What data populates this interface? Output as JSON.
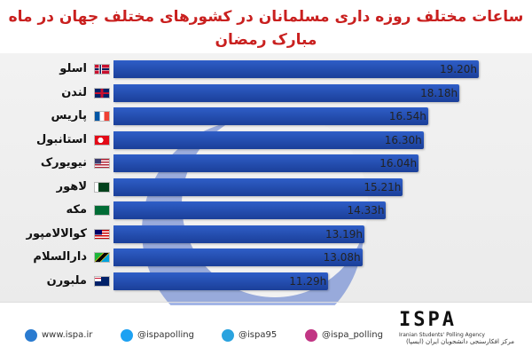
{
  "header": {
    "title": "ساعات مختلف روزه داری مسلمانان در کشورهای مختلف جهان در ماه مبارک رمضان"
  },
  "colors": {
    "bar": "#1f4aad",
    "title": "#c9201f",
    "moon": "#3a63c9"
  },
  "chart_data": {
    "type": "bar",
    "orientation": "horizontal",
    "title": "ساعات مختلف روزه داری مسلمانان در کشورهای مختلف جهان در ماه مبارک رمضان",
    "categories": [
      "اسلو",
      "لندن",
      "پاریس",
      "استانبول",
      "نیویورک",
      "لاهور",
      "مکه",
      "کوالالامپور",
      "دارالسلام",
      "ملبورن"
    ],
    "values": [
      19.2,
      18.18,
      16.54,
      16.3,
      16.04,
      15.21,
      14.33,
      13.19,
      13.08,
      11.29
    ],
    "value_labels": [
      "19.20h",
      "18.18h",
      "16.54h",
      "16.30h",
      "16.04h",
      "15.21h",
      "14.33h",
      "13.19h",
      "13.08h",
      "11.29h"
    ],
    "flags": [
      "norway-flag",
      "uk-flag",
      "france-flag",
      "turkey-flag",
      "usa-flag",
      "pakistan-flag",
      "saudi-flag",
      "malaysia-flag",
      "tanzania-flag",
      "australia-flag"
    ],
    "grid": false,
    "legend": "none"
  },
  "footer": {
    "website": "www.ispa.ir",
    "twitter": "@ispapolling",
    "telegram": "@ispa95",
    "instagram": "@ispa_polling",
    "logo": "ISPA",
    "agency_en": "Iranian Students' Polling Agency",
    "agency_fa": "مرکز افکارسنجی دانشجویان ایران (ایسپا)"
  }
}
